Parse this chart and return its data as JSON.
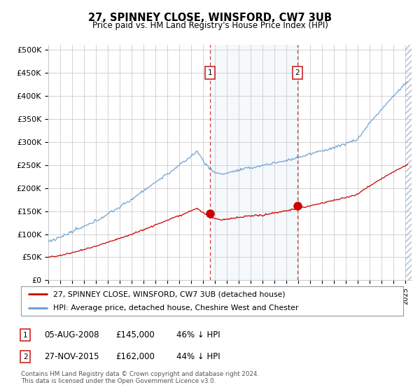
{
  "title": "27, SPINNEY CLOSE, WINSFORD, CW7 3UB",
  "subtitle": "Price paid vs. HM Land Registry's House Price Index (HPI)",
  "ylabel_ticks": [
    "£0",
    "£50K",
    "£100K",
    "£150K",
    "£200K",
    "£250K",
    "£300K",
    "£350K",
    "£400K",
    "£450K",
    "£500K"
  ],
  "ytick_values": [
    0,
    50000,
    100000,
    150000,
    200000,
    250000,
    300000,
    350000,
    400000,
    450000,
    500000
  ],
  "ylim": [
    0,
    510000
  ],
  "xlim_start": 1995.0,
  "xlim_end": 2025.5,
  "purchase1_date": 2008.58,
  "purchase1_price": 145000,
  "purchase2_date": 2015.9,
  "purchase2_price": 162000,
  "purchase1_annotation": "05-AUG-2008",
  "purchase1_price_str": "£145,000",
  "purchase1_pct": "46% ↓ HPI",
  "purchase2_annotation": "27-NOV-2015",
  "purchase2_price_str": "£162,000",
  "purchase2_pct": "44% ↓ HPI",
  "legend_property": "27, SPINNEY CLOSE, WINSFORD, CW7 3UB (detached house)",
  "legend_hpi": "HPI: Average price, detached house, Cheshire West and Chester",
  "footnote1": "Contains HM Land Registry data © Crown copyright and database right 2024.",
  "footnote2": "This data is licensed under the Open Government Licence v3.0.",
  "color_property": "#cc0000",
  "color_hpi": "#6699cc",
  "color_shade": "#ddeeff",
  "background_color": "#ffffff",
  "grid_color": "#cccccc",
  "hatch_start": 2025.0
}
